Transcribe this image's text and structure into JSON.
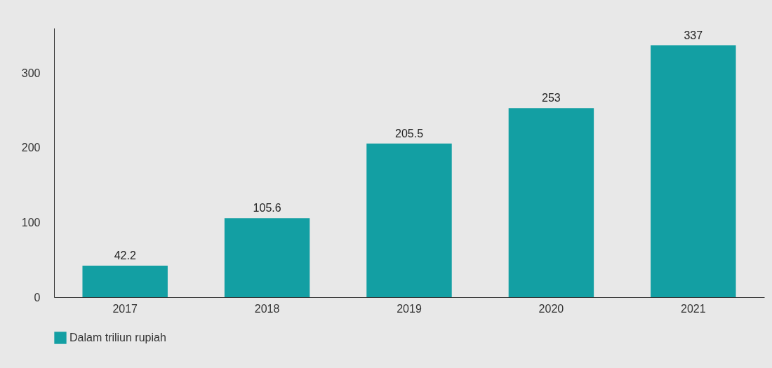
{
  "chart_data": {
    "type": "bar",
    "categories": [
      "2017",
      "2018",
      "2019",
      "2020",
      "2021"
    ],
    "series": [
      {
        "name": "Dalam triliun rupiah",
        "color": "#139fa3",
        "values": [
          42.2,
          105.6,
          205.5,
          253,
          337
        ]
      }
    ],
    "ylim": [
      0,
      360
    ],
    "yticks": [
      0,
      100,
      200,
      300
    ],
    "grid": false,
    "legend": "bottom",
    "data_labels": true
  }
}
